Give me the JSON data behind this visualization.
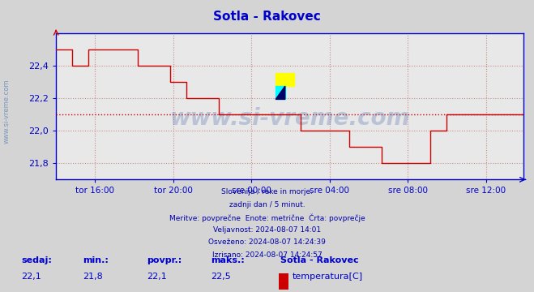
{
  "title": "Sotla - Rakovec",
  "bg_color": "#d4d4d4",
  "plot_bg_color": "#e8e8e8",
  "line_color": "#cc0000",
  "avg_line_color": "#cc0000",
  "axis_color": "#0000cc",
  "grid_color": "#cc8888",
  "text_color": "#0000aa",
  "watermark_color": "#4466aa",
  "ylim": [
    21.7,
    22.6
  ],
  "yticks": [
    21.8,
    22.0,
    22.2,
    22.4
  ],
  "avg_value": 22.1,
  "sedaj": "22,1",
  "min_val": "21,8",
  "povpr": "22,1",
  "maks": "22,5",
  "legend_label": "temperatura[C]",
  "station": "Sotla - Rakovec",
  "footer_lines": [
    "Slovenija / reke in morje.",
    "zadnji dan / 5 minut.",
    "Meritve: povprečne  Enote: metrične  Črta: povprečje",
    "Veljavnost: 2024-08-07 14:01",
    "Osveženo: 2024-08-07 14:24:39",
    "Izrisano: 2024-08-07 14:24:57"
  ],
  "xtick_labels": [
    "tor 16:00",
    "tor 20:00",
    "sre 00:00",
    "sre 04:00",
    "sre 08:00",
    "sre 12:00"
  ],
  "temperature_data": [
    22.5,
    22.5,
    22.5,
    22.5,
    22.5,
    22.5,
    22.5,
    22.5,
    22.5,
    22.5,
    22.4,
    22.4,
    22.4,
    22.4,
    22.4,
    22.4,
    22.4,
    22.4,
    22.4,
    22.4,
    22.5,
    22.5,
    22.5,
    22.5,
    22.5,
    22.5,
    22.5,
    22.5,
    22.5,
    22.5,
    22.5,
    22.5,
    22.5,
    22.5,
    22.5,
    22.5,
    22.5,
    22.5,
    22.5,
    22.5,
    22.5,
    22.5,
    22.5,
    22.5,
    22.5,
    22.5,
    22.5,
    22.5,
    22.5,
    22.5,
    22.4,
    22.4,
    22.4,
    22.4,
    22.4,
    22.4,
    22.4,
    22.4,
    22.4,
    22.4,
    22.4,
    22.4,
    22.4,
    22.4,
    22.4,
    22.4,
    22.4,
    22.4,
    22.4,
    22.4,
    22.3,
    22.3,
    22.3,
    22.3,
    22.3,
    22.3,
    22.3,
    22.3,
    22.3,
    22.3,
    22.2,
    22.2,
    22.2,
    22.2,
    22.2,
    22.2,
    22.2,
    22.2,
    22.2,
    22.2,
    22.2,
    22.2,
    22.2,
    22.2,
    22.2,
    22.2,
    22.2,
    22.2,
    22.2,
    22.2,
    22.1,
    22.1,
    22.1,
    22.1,
    22.1,
    22.1,
    22.1,
    22.1,
    22.1,
    22.1,
    22.1,
    22.1,
    22.1,
    22.1,
    22.1,
    22.1,
    22.1,
    22.1,
    22.1,
    22.1,
    22.1,
    22.1,
    22.1,
    22.1,
    22.1,
    22.1,
    22.1,
    22.1,
    22.1,
    22.1,
    22.1,
    22.1,
    22.1,
    22.1,
    22.1,
    22.1,
    22.1,
    22.1,
    22.1,
    22.1,
    22.1,
    22.1,
    22.1,
    22.1,
    22.1,
    22.1,
    22.1,
    22.1,
    22.1,
    22.1,
    22.0,
    22.0,
    22.0,
    22.0,
    22.0,
    22.0,
    22.0,
    22.0,
    22.0,
    22.0,
    22.0,
    22.0,
    22.0,
    22.0,
    22.0,
    22.0,
    22.0,
    22.0,
    22.0,
    22.0,
    22.0,
    22.0,
    22.0,
    22.0,
    22.0,
    22.0,
    22.0,
    22.0,
    22.0,
    22.0,
    21.9,
    21.9,
    21.9,
    21.9,
    21.9,
    21.9,
    21.9,
    21.9,
    21.9,
    21.9,
    21.9,
    21.9,
    21.9,
    21.9,
    21.9,
    21.9,
    21.9,
    21.9,
    21.9,
    21.9,
    21.8,
    21.8,
    21.8,
    21.8,
    21.8,
    21.8,
    21.8,
    21.8,
    21.8,
    21.8,
    21.8,
    21.8,
    21.8,
    21.8,
    21.8,
    21.8,
    21.8,
    21.8,
    21.8,
    21.8,
    21.8,
    21.8,
    21.8,
    21.8,
    21.8,
    21.8,
    21.8,
    21.8,
    21.8,
    21.8,
    22.0,
    22.0,
    22.0,
    22.0,
    22.0,
    22.0,
    22.0,
    22.0,
    22.0,
    22.0,
    22.1,
    22.1,
    22.1,
    22.1,
    22.1,
    22.1,
    22.1,
    22.1,
    22.1,
    22.1,
    22.1,
    22.1,
    22.1,
    22.1,
    22.1,
    22.1,
    22.1,
    22.1,
    22.1,
    22.1,
    22.1,
    22.1,
    22.1,
    22.1,
    22.1,
    22.1,
    22.1,
    22.1,
    22.1,
    22.1,
    22.1,
    22.1,
    22.1,
    22.1,
    22.1,
    22.1,
    22.1,
    22.1,
    22.1,
    22.1,
    22.1,
    22.1,
    22.1,
    22.1,
    22.1,
    22.1,
    22.1,
    22.1
  ]
}
